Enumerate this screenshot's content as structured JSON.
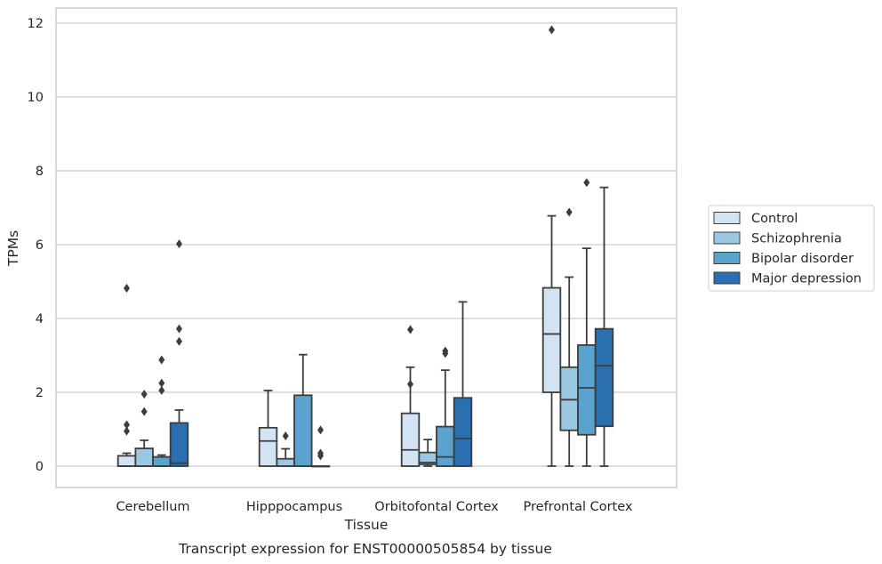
{
  "chart_data": {
    "type": "boxplot",
    "title": "",
    "caption": "Transcript expression for ENST00000505854 by tissue",
    "xlabel": "Tissue",
    "ylabel": "TPMs",
    "ylim": [
      -0.55,
      12.4
    ],
    "yticks": [
      0,
      2,
      4,
      6,
      8,
      10,
      12
    ],
    "grid": "horizontal",
    "legend_placement": "right",
    "categories": [
      "Cerebellum",
      "Hipppocampus",
      "Orbitofontal Cortex",
      "Prefrontal Cortex"
    ],
    "series": [
      {
        "name": "Control",
        "color": "#d2e3f3",
        "boxes": [
          {
            "whislo": 0,
            "q1": 0,
            "med": 0,
            "q3": 0.28,
            "whishi": 0.35,
            "fliers": [
              0.95,
              1.12,
              4.82
            ]
          },
          {
            "whislo": 0,
            "q1": 0,
            "med": 0.68,
            "q3": 1.04,
            "whishi": 2.05,
            "fliers": []
          },
          {
            "whislo": 0,
            "q1": 0,
            "med": 0.44,
            "q3": 1.43,
            "whishi": 2.68,
            "fliers": [
              2.22,
              3.7
            ]
          },
          {
            "whislo": 0,
            "q1": 2.0,
            "med": 3.58,
            "q3": 4.83,
            "whishi": 6.78,
            "fliers": [
              11.82
            ]
          }
        ]
      },
      {
        "name": "Schizophrenia",
        "color": "#9ac8e0",
        "boxes": [
          {
            "whislo": 0,
            "q1": 0,
            "med": 0,
            "q3": 0.48,
            "whishi": 0.7,
            "fliers": [
              1.48,
              1.95
            ]
          },
          {
            "whislo": 0,
            "q1": 0,
            "med": 0,
            "q3": 0.2,
            "whishi": 0.47,
            "fliers": [
              0.82
            ]
          },
          {
            "whislo": 0,
            "q1": 0.05,
            "med": 0.1,
            "q3": 0.37,
            "whishi": 0.72,
            "fliers": []
          },
          {
            "whislo": 0,
            "q1": 0.97,
            "med": 1.8,
            "q3": 2.68,
            "whishi": 5.12,
            "fliers": [
              6.88
            ]
          }
        ]
      },
      {
        "name": "Bipolar disorder",
        "color": "#5ba3cf",
        "boxes": [
          {
            "whislo": 0,
            "q1": 0,
            "med": 0,
            "q3": 0.25,
            "whishi": 0.3,
            "fliers": [
              2.05,
              2.25,
              2.88
            ]
          },
          {
            "whislo": 0,
            "q1": 0,
            "med": 0,
            "q3": 1.92,
            "whishi": 3.02,
            "fliers": []
          },
          {
            "whislo": 0,
            "q1": 0,
            "med": 0.25,
            "q3": 1.07,
            "whishi": 2.6,
            "fliers": [
              3.05,
              3.12
            ]
          },
          {
            "whislo": 0,
            "q1": 0.85,
            "med": 2.12,
            "q3": 3.28,
            "whishi": 5.9,
            "fliers": [
              7.68
            ]
          }
        ]
      },
      {
        "name": "Major depression",
        "color": "#2a70b0",
        "boxes": [
          {
            "whislo": 0,
            "q1": 0,
            "med": 0.08,
            "q3": 1.17,
            "whishi": 1.52,
            "fliers": [
              3.38,
              3.72,
              6.02
            ]
          },
          {
            "whislo": 0,
            "q1": 0,
            "med": 0,
            "q3": 0,
            "whishi": 0,
            "fliers": [
              0.28,
              0.35,
              0.98
            ]
          },
          {
            "whislo": 0,
            "q1": 0,
            "med": 0.75,
            "q3": 1.85,
            "whishi": 4.45,
            "fliers": []
          },
          {
            "whislo": 0,
            "q1": 1.08,
            "med": 2.72,
            "q3": 3.72,
            "whishi": 7.55,
            "fliers": []
          }
        ]
      }
    ]
  }
}
